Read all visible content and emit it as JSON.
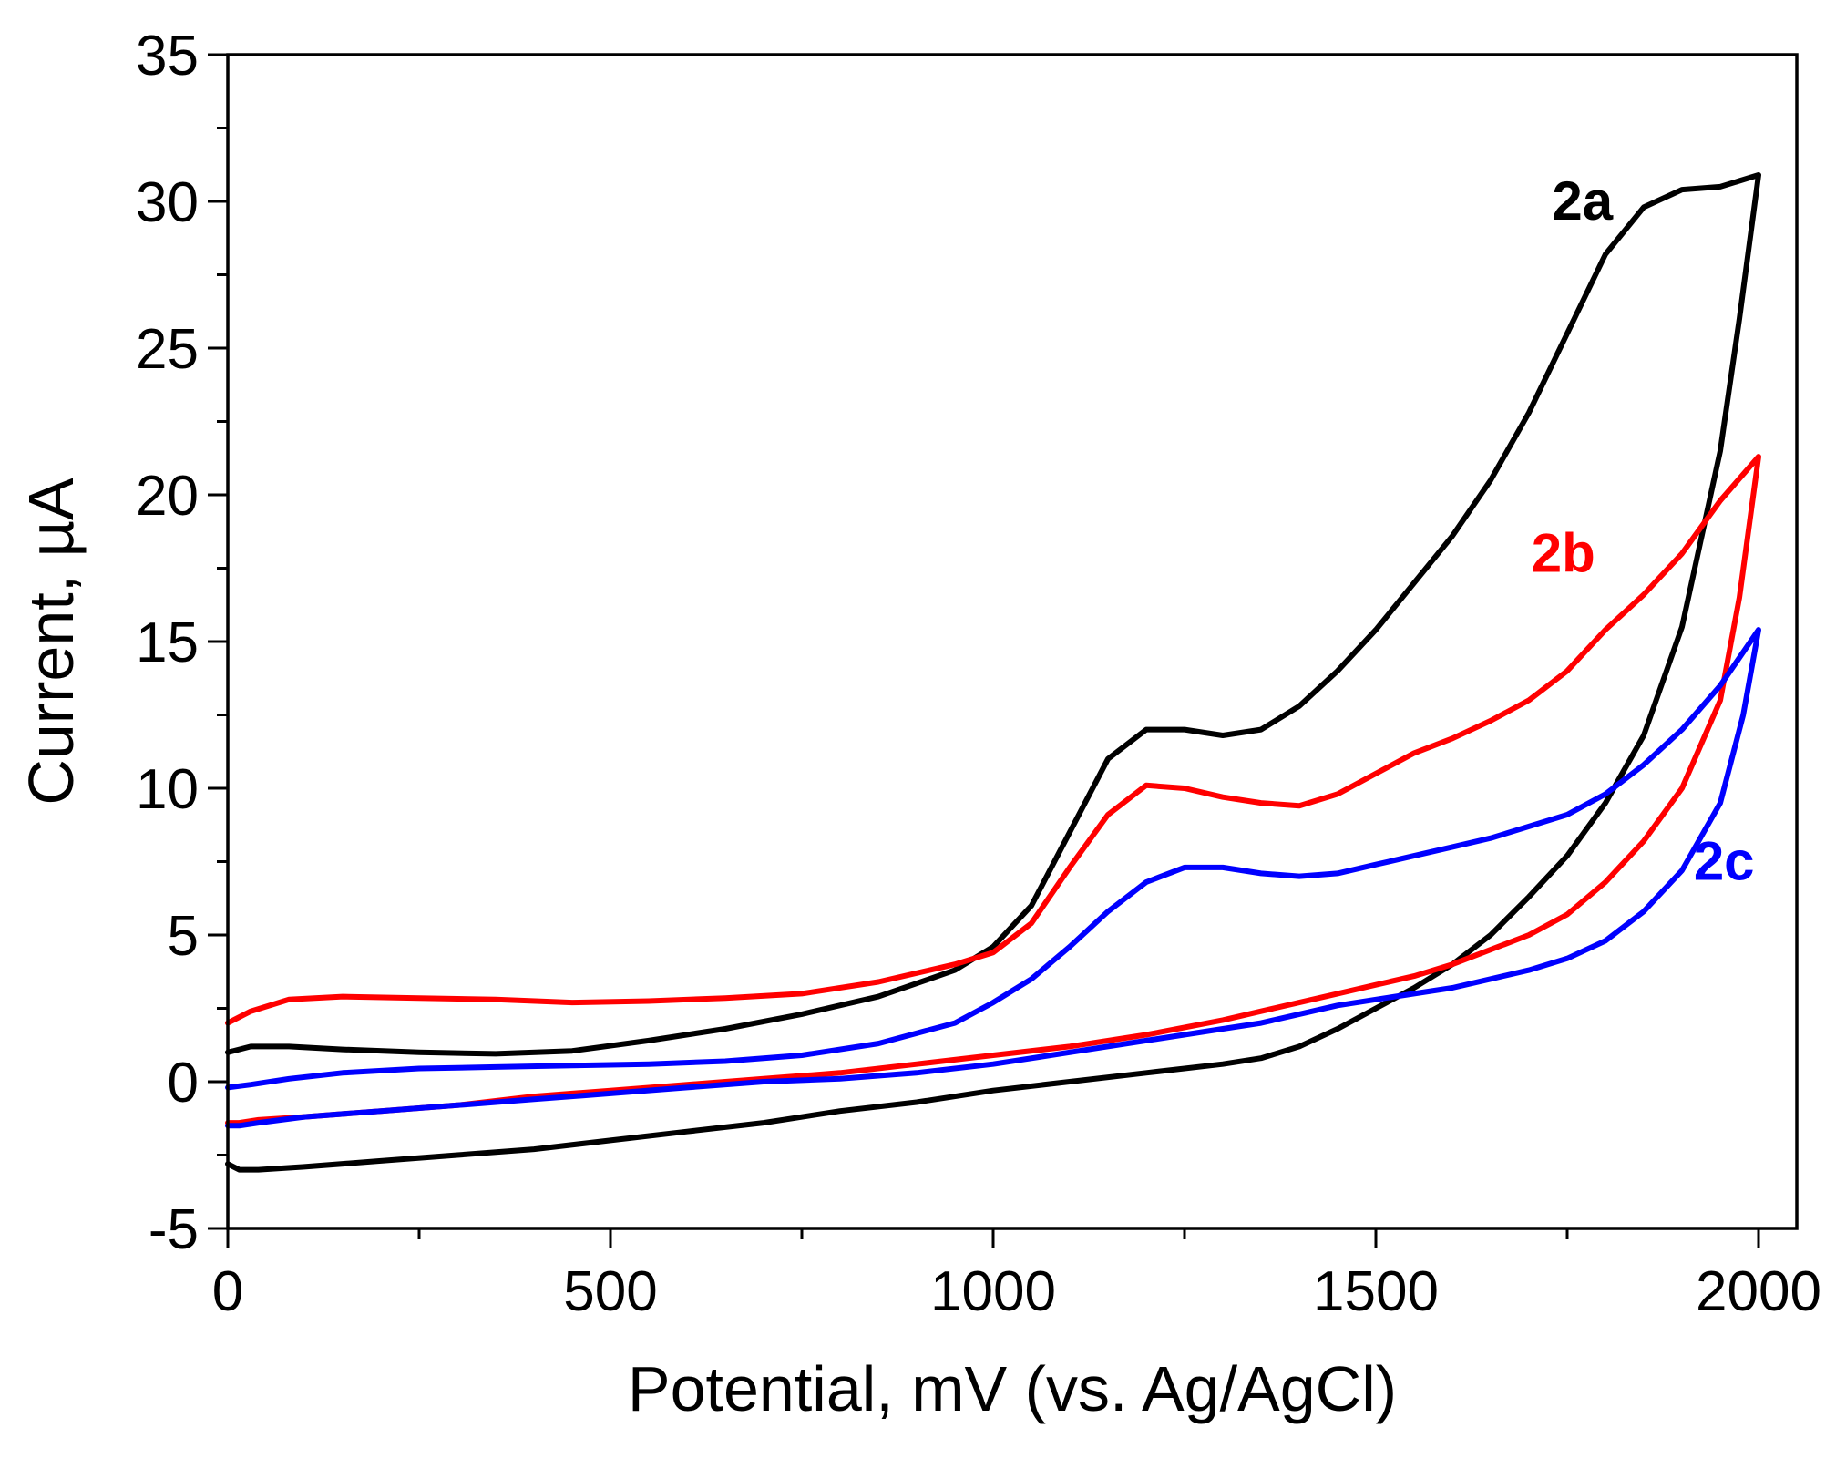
{
  "chart_data": {
    "type": "line",
    "title": "",
    "xlabel": "Potential, mV (vs. Ag/AgCl)",
    "ylabel": "Current,  µA",
    "xlim": [
      0,
      2050
    ],
    "ylim": [
      -5,
      35
    ],
    "xticks": [
      0,
      500,
      1000,
      1500,
      2000
    ],
    "yticks": [
      -5,
      0,
      5,
      10,
      15,
      20,
      25,
      30,
      35
    ],
    "x_minor_step": 250,
    "y_minor_step": 2.5,
    "grid": false,
    "legend": "inline labels",
    "series": [
      {
        "name": "2a",
        "color": "#000000",
        "label_pos": [
          1770,
          30
        ],
        "forward": [
          [
            0,
            1.0
          ],
          [
            30,
            1.2
          ],
          [
            80,
            1.2
          ],
          [
            150,
            1.1
          ],
          [
            250,
            1.0
          ],
          [
            350,
            0.95
          ],
          [
            450,
            1.05
          ],
          [
            550,
            1.4
          ],
          [
            650,
            1.8
          ],
          [
            750,
            2.3
          ],
          [
            850,
            2.9
          ],
          [
            950,
            3.8
          ],
          [
            1000,
            4.6
          ],
          [
            1050,
            6.0
          ],
          [
            1100,
            8.5
          ],
          [
            1150,
            11.0
          ],
          [
            1200,
            12.0
          ],
          [
            1250,
            12.0
          ],
          [
            1300,
            11.8
          ],
          [
            1350,
            12.0
          ],
          [
            1400,
            12.8
          ],
          [
            1450,
            14.0
          ],
          [
            1500,
            15.4
          ],
          [
            1550,
            17.0
          ],
          [
            1600,
            18.6
          ],
          [
            1650,
            20.5
          ],
          [
            1700,
            22.8
          ],
          [
            1750,
            25.5
          ],
          [
            1800,
            28.2
          ],
          [
            1850,
            29.8
          ],
          [
            1900,
            30.4
          ],
          [
            1950,
            30.5
          ],
          [
            2000,
            30.9
          ]
        ],
        "reverse": [
          [
            2000,
            30.9
          ],
          [
            1975,
            26.0
          ],
          [
            1950,
            21.5
          ],
          [
            1900,
            15.5
          ],
          [
            1850,
            11.8
          ],
          [
            1800,
            9.5
          ],
          [
            1750,
            7.7
          ],
          [
            1700,
            6.3
          ],
          [
            1650,
            5.0
          ],
          [
            1600,
            4.0
          ],
          [
            1550,
            3.2
          ],
          [
            1500,
            2.5
          ],
          [
            1450,
            1.8
          ],
          [
            1400,
            1.2
          ],
          [
            1350,
            0.8
          ],
          [
            1300,
            0.6
          ],
          [
            1200,
            0.3
          ],
          [
            1100,
            0.0
          ],
          [
            1000,
            -0.3
          ],
          [
            900,
            -0.7
          ],
          [
            800,
            -1.0
          ],
          [
            700,
            -1.4
          ],
          [
            600,
            -1.7
          ],
          [
            500,
            -2.0
          ],
          [
            400,
            -2.3
          ],
          [
            300,
            -2.5
          ],
          [
            200,
            -2.7
          ],
          [
            100,
            -2.9
          ],
          [
            40,
            -3.0
          ],
          [
            15,
            -3.0
          ],
          [
            0,
            -2.8
          ]
        ]
      },
      {
        "name": "2b",
        "color": "#ff0000",
        "label_pos": [
          1745,
          18
        ],
        "forward": [
          [
            0,
            2.0
          ],
          [
            30,
            2.4
          ],
          [
            80,
            2.8
          ],
          [
            150,
            2.9
          ],
          [
            250,
            2.85
          ],
          [
            350,
            2.8
          ],
          [
            450,
            2.7
          ],
          [
            550,
            2.75
          ],
          [
            650,
            2.85
          ],
          [
            750,
            3.0
          ],
          [
            850,
            3.4
          ],
          [
            950,
            4.0
          ],
          [
            1000,
            4.4
          ],
          [
            1050,
            5.4
          ],
          [
            1100,
            7.3
          ],
          [
            1150,
            9.1
          ],
          [
            1200,
            10.1
          ],
          [
            1250,
            10.0
          ],
          [
            1300,
            9.7
          ],
          [
            1350,
            9.5
          ],
          [
            1400,
            9.4
          ],
          [
            1450,
            9.8
          ],
          [
            1500,
            10.5
          ],
          [
            1550,
            11.2
          ],
          [
            1600,
            11.7
          ],
          [
            1650,
            12.3
          ],
          [
            1700,
            13.0
          ],
          [
            1750,
            14.0
          ],
          [
            1800,
            15.4
          ],
          [
            1850,
            16.6
          ],
          [
            1900,
            18.0
          ],
          [
            1950,
            19.8
          ],
          [
            2000,
            21.3
          ]
        ],
        "reverse": [
          [
            2000,
            21.3
          ],
          [
            1975,
            16.5
          ],
          [
            1950,
            13.0
          ],
          [
            1900,
            10.0
          ],
          [
            1850,
            8.2
          ],
          [
            1800,
            6.8
          ],
          [
            1750,
            5.7
          ],
          [
            1700,
            5.0
          ],
          [
            1650,
            4.5
          ],
          [
            1600,
            4.0
          ],
          [
            1550,
            3.6
          ],
          [
            1500,
            3.3
          ],
          [
            1450,
            3.0
          ],
          [
            1400,
            2.7
          ],
          [
            1350,
            2.4
          ],
          [
            1300,
            2.1
          ],
          [
            1200,
            1.6
          ],
          [
            1100,
            1.2
          ],
          [
            1000,
            0.9
          ],
          [
            900,
            0.6
          ],
          [
            800,
            0.3
          ],
          [
            700,
            0.1
          ],
          [
            600,
            -0.1
          ],
          [
            500,
            -0.3
          ],
          [
            400,
            -0.5
          ],
          [
            300,
            -0.8
          ],
          [
            200,
            -1.0
          ],
          [
            100,
            -1.2
          ],
          [
            40,
            -1.3
          ],
          [
            15,
            -1.4
          ],
          [
            0,
            -1.4
          ]
        ]
      },
      {
        "name": "2c",
        "color": "#0000ff",
        "label_pos": [
          1955,
          7.5
        ],
        "forward": [
          [
            0,
            -0.2
          ],
          [
            30,
            -0.1
          ],
          [
            80,
            0.1
          ],
          [
            150,
            0.3
          ],
          [
            250,
            0.45
          ],
          [
            350,
            0.5
          ],
          [
            450,
            0.55
          ],
          [
            550,
            0.6
          ],
          [
            650,
            0.7
          ],
          [
            750,
            0.9
          ],
          [
            850,
            1.3
          ],
          [
            950,
            2.0
          ],
          [
            1000,
            2.7
          ],
          [
            1050,
            3.5
          ],
          [
            1100,
            4.6
          ],
          [
            1150,
            5.8
          ],
          [
            1200,
            6.8
          ],
          [
            1250,
            7.3
          ],
          [
            1300,
            7.3
          ],
          [
            1350,
            7.1
          ],
          [
            1400,
            7.0
          ],
          [
            1450,
            7.1
          ],
          [
            1500,
            7.4
          ],
          [
            1550,
            7.7
          ],
          [
            1600,
            8.0
          ],
          [
            1650,
            8.3
          ],
          [
            1700,
            8.7
          ],
          [
            1750,
            9.1
          ],
          [
            1800,
            9.8
          ],
          [
            1850,
            10.8
          ],
          [
            1900,
            12.0
          ],
          [
            1950,
            13.5
          ],
          [
            2000,
            15.4
          ]
        ],
        "reverse": [
          [
            2000,
            15.4
          ],
          [
            1980,
            12.5
          ],
          [
            1950,
            9.5
          ],
          [
            1900,
            7.2
          ],
          [
            1850,
            5.8
          ],
          [
            1800,
            4.8
          ],
          [
            1750,
            4.2
          ],
          [
            1700,
            3.8
          ],
          [
            1650,
            3.5
          ],
          [
            1600,
            3.2
          ],
          [
            1550,
            3.0
          ],
          [
            1500,
            2.8
          ],
          [
            1450,
            2.6
          ],
          [
            1400,
            2.3
          ],
          [
            1350,
            2.0
          ],
          [
            1300,
            1.8
          ],
          [
            1200,
            1.4
          ],
          [
            1100,
            1.0
          ],
          [
            1000,
            0.6
          ],
          [
            900,
            0.3
          ],
          [
            800,
            0.1
          ],
          [
            700,
            0.0
          ],
          [
            600,
            -0.2
          ],
          [
            500,
            -0.4
          ],
          [
            400,
            -0.6
          ],
          [
            300,
            -0.8
          ],
          [
            200,
            -1.0
          ],
          [
            100,
            -1.2
          ],
          [
            40,
            -1.4
          ],
          [
            15,
            -1.5
          ],
          [
            0,
            -1.5
          ]
        ]
      }
    ]
  }
}
